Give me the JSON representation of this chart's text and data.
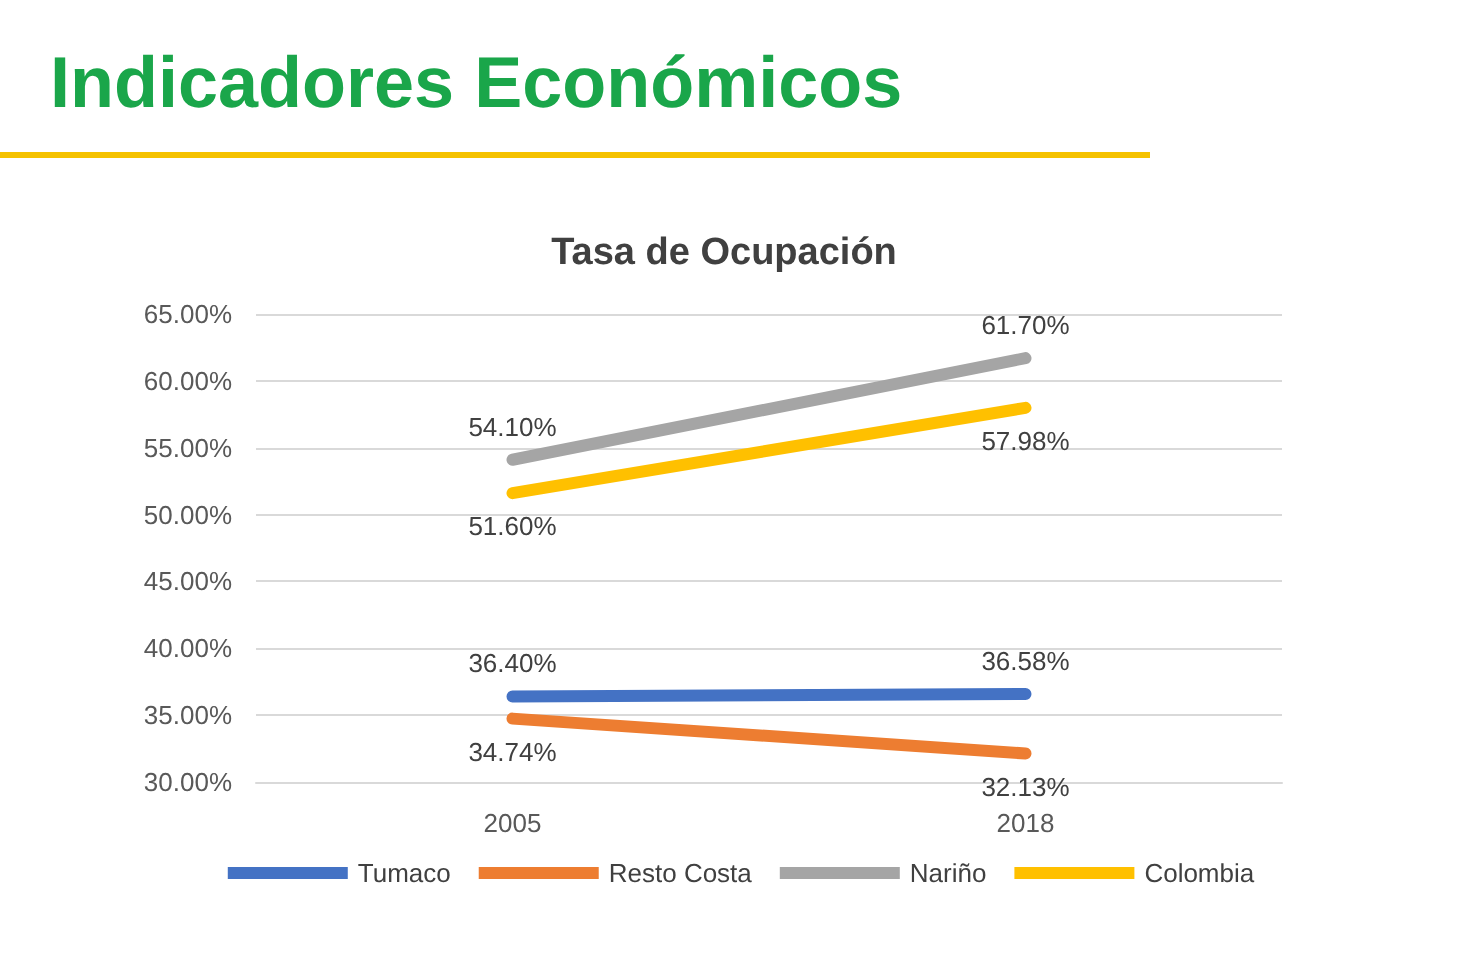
{
  "chart_data": {
    "type": "line",
    "title": "Indicadores Económicos",
    "subtitle": "Tasa de Ocupación",
    "categories": [
      "2005",
      "2018"
    ],
    "series": [
      {
        "name": "Tumaco",
        "color": "#4472c4",
        "values": [
          36.4,
          36.58
        ],
        "value_labels": [
          "36.40%",
          "36.58%"
        ]
      },
      {
        "name": "Resto Costa",
        "color": "#ed7d31",
        "values": [
          34.74,
          32.13
        ],
        "value_labels": [
          "34.74%",
          "32.13%"
        ]
      },
      {
        "name": "Nariño",
        "color": "#a5a5a5",
        "values": [
          54.1,
          61.7
        ],
        "value_labels": [
          "54.10%",
          "61.70%"
        ]
      },
      {
        "name": "Colombia",
        "color": "#ffc000",
        "values": [
          51.6,
          57.98
        ],
        "value_labels": [
          "51.60%",
          "57.98%"
        ]
      }
    ],
    "ylim": [
      30,
      65
    ],
    "yticks": [
      {
        "value": 30,
        "label": "30.00%"
      },
      {
        "value": 35,
        "label": "35.00%"
      },
      {
        "value": 40,
        "label": "40.00%"
      },
      {
        "value": 45,
        "label": "45.00%"
      },
      {
        "value": 50,
        "label": "50.00%"
      },
      {
        "value": 55,
        "label": "55.00%"
      },
      {
        "value": 60,
        "label": "60.00%"
      },
      {
        "value": 65,
        "label": "65.00%"
      }
    ],
    "grid": "y",
    "legend": "bottom"
  }
}
